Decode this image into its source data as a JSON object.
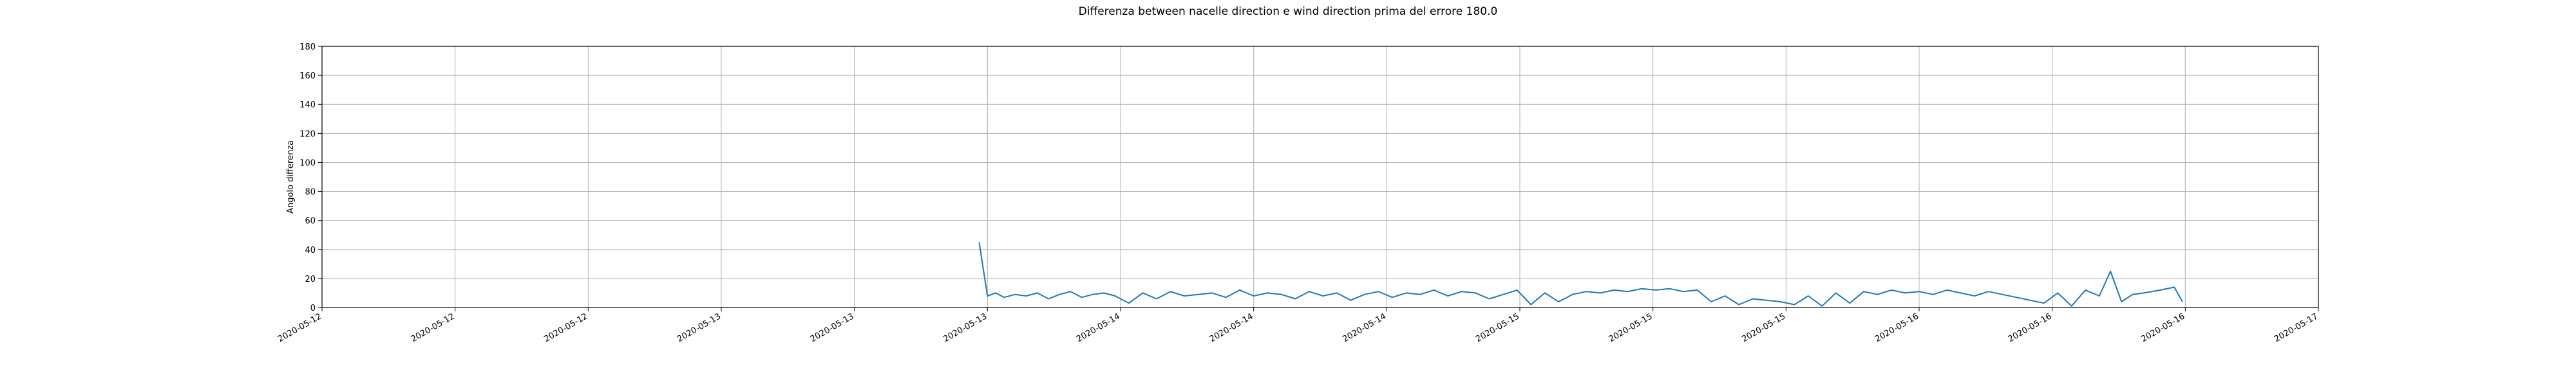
{
  "chart_data": {
    "type": "line",
    "title": "Differenza between nacelle direction e wind direction prima del errore 180.0",
    "xlabel": "",
    "ylabel": "Angolo differenza",
    "ylim": [
      0,
      180
    ],
    "yticks": [
      0,
      20,
      40,
      60,
      80,
      100,
      120,
      140,
      160,
      180
    ],
    "xlim": [
      "2020-05-12 00:00",
      "2020-05-17 00:00"
    ],
    "xtick_positions": [
      "2020-05-12 00:00",
      "2020-05-12 08:00",
      "2020-05-12 16:00",
      "2020-05-13 00:00",
      "2020-05-13 08:00",
      "2020-05-13 16:00",
      "2020-05-14 00:00",
      "2020-05-14 08:00",
      "2020-05-14 16:00",
      "2020-05-15 00:00",
      "2020-05-15 08:00",
      "2020-05-15 16:00",
      "2020-05-16 00:00",
      "2020-05-16 08:00",
      "2020-05-16 16:00",
      "2020-05-17 00:00"
    ],
    "xtick_labels": [
      "2020-05-12",
      "2020-05-12",
      "2020-05-12",
      "2020-05-13",
      "2020-05-13",
      "2020-05-13",
      "2020-05-14",
      "2020-05-14",
      "2020-05-14",
      "2020-05-15",
      "2020-05-15",
      "2020-05-15",
      "2020-05-16",
      "2020-05-16",
      "2020-05-16",
      "2020-05-17"
    ],
    "grid": true,
    "color": "#1f77b4",
    "series": [
      {
        "x": [
          "2020-05-13 15:30",
          "2020-05-13 16:00",
          "2020-05-13 16:30",
          "2020-05-13 17:00",
          "2020-05-13 17:40",
          "2020-05-13 18:20",
          "2020-05-13 19:00",
          "2020-05-13 19:40",
          "2020-05-13 20:20",
          "2020-05-13 21:00",
          "2020-05-13 21:40",
          "2020-05-13 22:20",
          "2020-05-13 23:00",
          "2020-05-13 23:40",
          "2020-05-14 00:30",
          "2020-05-14 01:20",
          "2020-05-14 02:10",
          "2020-05-14 03:00",
          "2020-05-14 03:50",
          "2020-05-14 04:40",
          "2020-05-14 05:30",
          "2020-05-14 06:20",
          "2020-05-14 07:10",
          "2020-05-14 08:00",
          "2020-05-14 08:50",
          "2020-05-14 09:40",
          "2020-05-14 10:30",
          "2020-05-14 11:20",
          "2020-05-14 12:10",
          "2020-05-14 13:00",
          "2020-05-14 13:50",
          "2020-05-14 14:40",
          "2020-05-14 15:30",
          "2020-05-14 16:20",
          "2020-05-14 17:10",
          "2020-05-14 18:00",
          "2020-05-14 18:50",
          "2020-05-14 19:40",
          "2020-05-14 20:30",
          "2020-05-14 21:20",
          "2020-05-14 22:10",
          "2020-05-14 23:00",
          "2020-05-14 23:50",
          "2020-05-15 00:40",
          "2020-05-15 01:30",
          "2020-05-15 02:20",
          "2020-05-15 03:10",
          "2020-05-15 04:00",
          "2020-05-15 04:50",
          "2020-05-15 05:40",
          "2020-05-15 06:30",
          "2020-05-15 07:20",
          "2020-05-15 08:10",
          "2020-05-15 09:00",
          "2020-05-15 09:50",
          "2020-05-15 10:40",
          "2020-05-15 11:30",
          "2020-05-15 12:20",
          "2020-05-15 13:10",
          "2020-05-15 14:00",
          "2020-05-15 14:50",
          "2020-05-15 15:40",
          "2020-05-15 16:30",
          "2020-05-15 17:20",
          "2020-05-15 18:10",
          "2020-05-15 19:00",
          "2020-05-15 19:50",
          "2020-05-15 20:40",
          "2020-05-15 21:30",
          "2020-05-15 22:20",
          "2020-05-15 23:10",
          "2020-05-16 00:00",
          "2020-05-16 00:50",
          "2020-05-16 01:40",
          "2020-05-16 02:30",
          "2020-05-16 03:20",
          "2020-05-16 04:10",
          "2020-05-16 05:00",
          "2020-05-16 05:50",
          "2020-05-16 06:40",
          "2020-05-16 07:30",
          "2020-05-16 08:20",
          "2020-05-16 09:10",
          "2020-05-16 10:00",
          "2020-05-16 10:50",
          "2020-05-16 11:30",
          "2020-05-16 12:10",
          "2020-05-16 12:50",
          "2020-05-16 13:30",
          "2020-05-16 14:30",
          "2020-05-16 15:20",
          "2020-05-16 15:50"
        ],
        "y": [
          45,
          8,
          10,
          7,
          9,
          8,
          10,
          6,
          9,
          11,
          7,
          9,
          10,
          8,
          3,
          10,
          6,
          11,
          8,
          9,
          10,
          7,
          12,
          8,
          10,
          9,
          6,
          11,
          8,
          10,
          5,
          9,
          11,
          7,
          10,
          9,
          12,
          8,
          11,
          10,
          6,
          9,
          12,
          2,
          10,
          4,
          9,
          11,
          10,
          12,
          11,
          13,
          12,
          13,
          11,
          12,
          4,
          8,
          2,
          6,
          5,
          4,
          2,
          8,
          1,
          10,
          3,
          11,
          9,
          12,
          10,
          11,
          9,
          12,
          10,
          8,
          11,
          9,
          7,
          5,
          3,
          10,
          1,
          12,
          8,
          25,
          4,
          9,
          10,
          12,
          14,
          4
        ]
      }
    ]
  }
}
